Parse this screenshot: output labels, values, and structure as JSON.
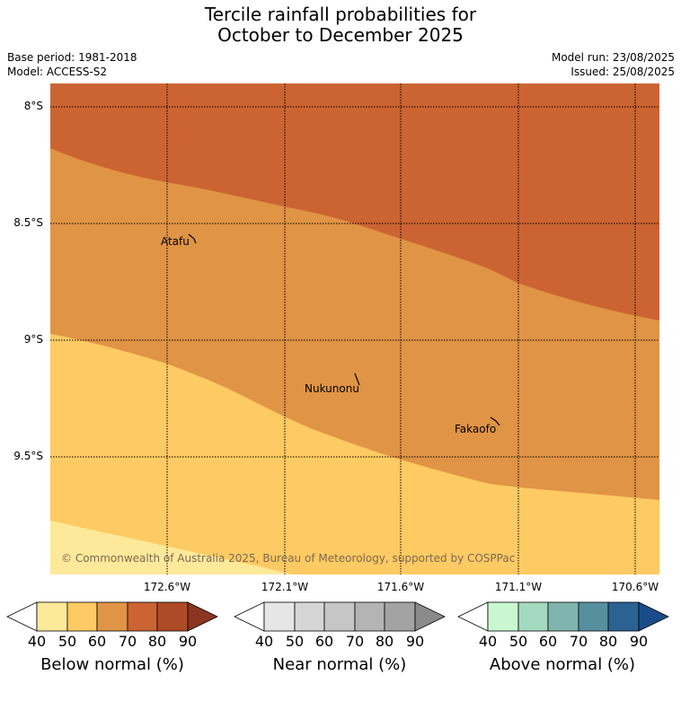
{
  "title": {
    "line1": "Tercile rainfall probabilities for",
    "line2": "October to December 2025"
  },
  "meta": {
    "base_period": "Base period: 1981-2018",
    "model": "Model: ACCESS-S2",
    "model_run": "Model run: 23/08/2025",
    "issued": "Issued: 25/08/2025"
  },
  "map": {
    "latitudes": [
      {
        "value": -8.0,
        "label": "8°S"
      },
      {
        "value": -8.5,
        "label": "8.5°S"
      },
      {
        "value": -9.0,
        "label": "9°S"
      },
      {
        "value": -9.5,
        "label": "9.5°S"
      }
    ],
    "longitudes": [
      {
        "value": -172.6,
        "label": "172.6°W"
      },
      {
        "value": -172.1,
        "label": "172.1°W"
      },
      {
        "value": -171.6,
        "label": "171.6°W"
      },
      {
        "value": -171.1,
        "label": "171.1°W"
      },
      {
        "value": -170.6,
        "label": "170.6°W"
      }
    ],
    "places": [
      {
        "name": "Atafu"
      },
      {
        "name": "Nukunonu"
      },
      {
        "name": "Fakaofo"
      }
    ],
    "copyright": "© Commonwealth of Australia 2025, Bureau of Meteorology, supported by COSPPac",
    "category_colors": {
      "below_40_50": "#fee99a",
      "below_50_60": "#fdca63",
      "below_60_70": "#e09445",
      "below_70_80": "#cb6432"
    }
  },
  "legends": [
    {
      "label": "Below normal (%)",
      "colors": [
        "#ffffff",
        "#fee99a",
        "#fdca63",
        "#e09445",
        "#cb6432",
        "#ae4b27",
        "#8c3520"
      ],
      "ticks": [
        "40",
        "50",
        "60",
        "70",
        "80",
        "90"
      ]
    },
    {
      "label": "Near normal (%)",
      "colors": [
        "#ffffff",
        "#e6e6e6",
        "#d6d6d6",
        "#c6c6c6",
        "#b4b4b4",
        "#a3a3a3",
        "#8a8a8a"
      ],
      "ticks": [
        "40",
        "50",
        "60",
        "70",
        "80",
        "90"
      ]
    },
    {
      "label": "Above normal (%)",
      "colors": [
        "#ffffff",
        "#c9f8d0",
        "#a3d9bf",
        "#7fb5ae",
        "#56909f",
        "#2a6294",
        "#1b4c89"
      ],
      "ticks": [
        "40",
        "50",
        "60",
        "70",
        "80",
        "90"
      ]
    }
  ]
}
